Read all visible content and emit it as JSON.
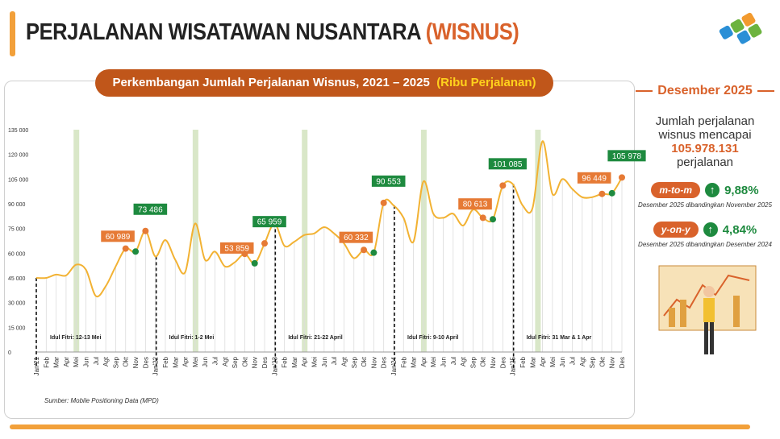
{
  "header": {
    "title": "PERJALANAN WISATAWAN NUSANTARA",
    "title_highlight": "(WISNUS)"
  },
  "chart_data": {
    "type": "line",
    "title": "Perkembangan Jumlah Perjalanan Wisnus, 2021 – 2025",
    "subtitle": "(Ribu Perjalanan)",
    "color": "#f2b233",
    "categories": [
      "Jan'21",
      "Feb",
      "Mar",
      "Apr",
      "Mei",
      "Jun",
      "Jul",
      "Agt",
      "Sep",
      "Okt",
      "Nov",
      "Des",
      "Jan'22",
      "Feb",
      "Mar",
      "Apr",
      "Mei",
      "Jun",
      "Jul",
      "Agt",
      "Sep",
      "Okt",
      "Nov",
      "Des",
      "Jan'23",
      "Feb",
      "Mar",
      "Apr",
      "Mei",
      "Jun",
      "Jul",
      "Agt",
      "Sep",
      "Okt",
      "Nov",
      "Des",
      "Jan'24",
      "Feb",
      "Mar",
      "Apr",
      "Mei",
      "Jun",
      "Jul",
      "Agt",
      "Sep",
      "Okt",
      "Nov",
      "Des",
      "Jan'25",
      "Feb",
      "Mar",
      "Apr",
      "Mei",
      "Jun",
      "Jul",
      "Agt",
      "Sep",
      "Okt",
      "Nov",
      "Des"
    ],
    "values": [
      45000,
      45000,
      47000,
      46500,
      53000,
      50000,
      34000,
      40000,
      52000,
      62800,
      60989,
      73486,
      58000,
      68000,
      56000,
      48500,
      78000,
      56000,
      61000,
      52000,
      54500,
      59600,
      53859,
      65959,
      78000,
      64500,
      67000,
      71000,
      72000,
      75800,
      72000,
      66000,
      57000,
      62000,
      60332,
      90553,
      89000,
      81500,
      67000,
      103500,
      84000,
      81500,
      84000,
      76800,
      86500,
      81500,
      80613,
      101085,
      102000,
      89000,
      87500,
      128000,
      96000,
      105000,
      99000,
      94000,
      94000,
      96000,
      96449,
      105978
    ],
    "value_labels": [
      null,
      null,
      null,
      null,
      null,
      null,
      null,
      null,
      null,
      null,
      "60 989",
      "73 486",
      null,
      null,
      null,
      null,
      null,
      null,
      null,
      null,
      null,
      null,
      "53 859",
      "65 959",
      null,
      null,
      null,
      null,
      null,
      null,
      null,
      null,
      null,
      null,
      "60 332",
      "90 553",
      null,
      null,
      null,
      null,
      null,
      null,
      null,
      null,
      null,
      null,
      "80 613",
      "101 085",
      null,
      null,
      null,
      null,
      null,
      null,
      null,
      null,
      null,
      null,
      "96 449",
      "105 978"
    ],
    "ylim": [
      0,
      135000
    ],
    "yticks": [
      0,
      {
        "value": 15000,
        "label": "15 000"
      },
      {
        "value": 30000,
        "label": "30 000"
      },
      {
        "value": 45000,
        "label": "45 000"
      },
      {
        "value": 60000,
        "label": "60 000"
      },
      {
        "value": 75000,
        "label": "75 000"
      },
      {
        "value": 90000,
        "label": "90 000"
      },
      {
        "value": 105000,
        "label": "105 000"
      },
      {
        "value": 120000,
        "label": "120 000"
      },
      {
        "value": 135000,
        "label": "135 000"
      }
    ],
    "grid": true,
    "annotations": [
      "Idul Fitri: 12-13 Mei",
      "Idul Fitri: 1-2 Mei",
      "Idul Fitri: 21-22 April",
      "Idul Fitri: 9-10 April",
      "Idul Fitri: 31 Mar & 1 Apr"
    ],
    "source": "Sumber: Mobile Positioning Data (MPD)"
  },
  "panel": {
    "heading": "Desember 2025",
    "text_1": "Jumlah perjalanan",
    "text_2": "wisnus mencapai",
    "highlight": "105.978.131",
    "text_3": "perjalanan",
    "indicators": [
      {
        "label": "m-to-m",
        "value": "9,88%",
        "note": "Desember 2025 dibandingkan November 2025"
      },
      {
        "label": "y-on-y",
        "value": "4,84%",
        "note": "Desember 2025 dibandingkan Desember 2024"
      }
    ]
  }
}
